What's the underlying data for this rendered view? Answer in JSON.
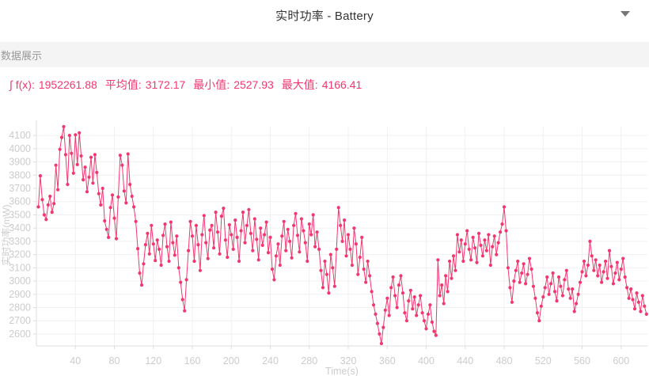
{
  "header": {
    "title": "实时功率 - Battery",
    "dropdown_icon": "caret-down"
  },
  "section": {
    "label": "数据展示"
  },
  "stats": [
    {
      "label": "∫ f(x):",
      "value": "1952261.88"
    },
    {
      "label": "平均值:",
      "value": "3172.17"
    },
    {
      "label": "最小值:",
      "value": "2527.93"
    },
    {
      "label": "最大值:",
      "value": "4166.41"
    }
  ],
  "colors": {
    "accent": "#F2366F",
    "title": "#333333",
    "section_label": "#999999",
    "band_bg": "#f4f4f4",
    "tick_label": "#cccccc",
    "grid": "#f1f1f1",
    "axis": "#dddddd",
    "caret": "#777777"
  },
  "chart_data": {
    "type": "line",
    "title": "实时功率 - Battery",
    "xlabel": "Time(s)",
    "ylabel": "实时功率(mW)",
    "xlim": [
      0,
      627
    ],
    "ylim": [
      2527.93,
      4166.41
    ],
    "x_ticks": [
      40,
      80,
      120,
      160,
      200,
      240,
      280,
      320,
      360,
      400,
      440,
      480,
      520,
      560,
      600
    ],
    "y_ticks": [
      2600,
      2700,
      2800,
      2900,
      3000,
      3100,
      3200,
      3300,
      3400,
      3500,
      3600,
      3700,
      3800,
      3900,
      4000,
      4100
    ],
    "grid": true,
    "legend": "none",
    "marker": "circle",
    "stats": {
      "integral": 1952261.88,
      "mean": 3172.17,
      "min": 2527.93,
      "max": 4166.41
    },
    "series": [
      {
        "name": "实时功率",
        "color": "#F2366F",
        "t0": 2,
        "dt": 2,
        "values": [
          3560,
          3795,
          3615,
          3500,
          3465,
          3575,
          3640,
          3520,
          3585,
          3875,
          3690,
          3995,
          4085,
          4166.4,
          3955,
          3730,
          4100,
          3965,
          3815,
          4105,
          3880,
          4120,
          3945,
          3765,
          3860,
          3675,
          3785,
          3935,
          3740,
          3955,
          3820,
          3660,
          3575,
          3700,
          3455,
          3390,
          3330,
          3555,
          3650,
          3475,
          3320,
          3635,
          3950,
          3875,
          3680,
          3590,
          3960,
          3730,
          3640,
          3560,
          3450,
          3245,
          3060,
          2970,
          3130,
          3275,
          3360,
          3205,
          3420,
          3280,
          3155,
          3310,
          3240,
          3120,
          3345,
          3430,
          3260,
          3150,
          3445,
          3290,
          3195,
          3340,
          3100,
          2990,
          2860,
          2775,
          3010,
          3230,
          3450,
          3340,
          3150,
          3420,
          3275,
          3080,
          3350,
          3495,
          3290,
          3170,
          3385,
          3420,
          3250,
          3520,
          3370,
          3205,
          3490,
          3550,
          3310,
          3180,
          3425,
          3350,
          3240,
          3460,
          3330,
          3150,
          3380,
          3520,
          3290,
          3420,
          3540,
          3360,
          3230,
          3470,
          3315,
          3160,
          3400,
          3270,
          3350,
          3445,
          3215,
          3330,
          3090,
          3010,
          3190,
          3280,
          3120,
          3340,
          3450,
          3230,
          3390,
          3300,
          3175,
          3420,
          3510,
          3345,
          3220,
          3470,
          3380,
          3290,
          3150,
          3430,
          3350,
          3500,
          3260,
          3370,
          3240,
          3080,
          2950,
          3150,
          3050,
          2910,
          3200,
          3100,
          2960,
          3240,
          3555,
          3420,
          3300,
          3460,
          3190,
          3350,
          3240,
          3120,
          3400,
          3280,
          3050,
          3180,
          3330,
          3090,
          2990,
          3150,
          3040,
          2920,
          2820,
          2750,
          2680,
          2600,
          2527.9,
          2650,
          2780,
          2870,
          2740,
          2950,
          3030,
          2890,
          2800,
          2970,
          3040,
          2910,
          2760,
          2700,
          2850,
          2930,
          2790,
          2880,
          2740,
          2820,
          2890,
          2760,
          2700,
          2640,
          2750,
          2820,
          2690,
          2620,
          2590,
          3160,
          2890,
          2970,
          2830,
          3040,
          2920,
          3150,
          3020,
          3190,
          3080,
          3350,
          3220,
          3310,
          3150,
          3280,
          3380,
          3240,
          3160,
          3330,
          3250,
          3140,
          3360,
          3270,
          3190,
          3310,
          3230,
          3350,
          3120,
          3260,
          3340,
          3200,
          3290,
          3370,
          3430,
          3560,
          3380,
          3100,
          2950,
          2840,
          3000,
          3080,
          3150,
          2990,
          3060,
          3130,
          2980,
          3050,
          3170,
          3090,
          2960,
          2870,
          2760,
          2700,
          2810,
          2880,
          2950,
          3030,
          2900,
          2980,
          3060,
          2920,
          2850,
          3030,
          2960,
          2890,
          3010,
          3080,
          2940,
          2870,
          2940,
          2770,
          2830,
          2900,
          2990,
          3070,
          3150,
          3040,
          3120,
          3300,
          3190,
          3080,
          3160,
          3040,
          3120,
          2990,
          3070,
          3150,
          3020,
          3230,
          3110,
          2980,
          3060,
          3140,
          3010,
          3090,
          3170,
          3030,
          2950,
          2870,
          2940,
          2860,
          2790,
          2910,
          2840,
          2770,
          2890,
          2810,
          2750
        ]
      }
    ]
  }
}
